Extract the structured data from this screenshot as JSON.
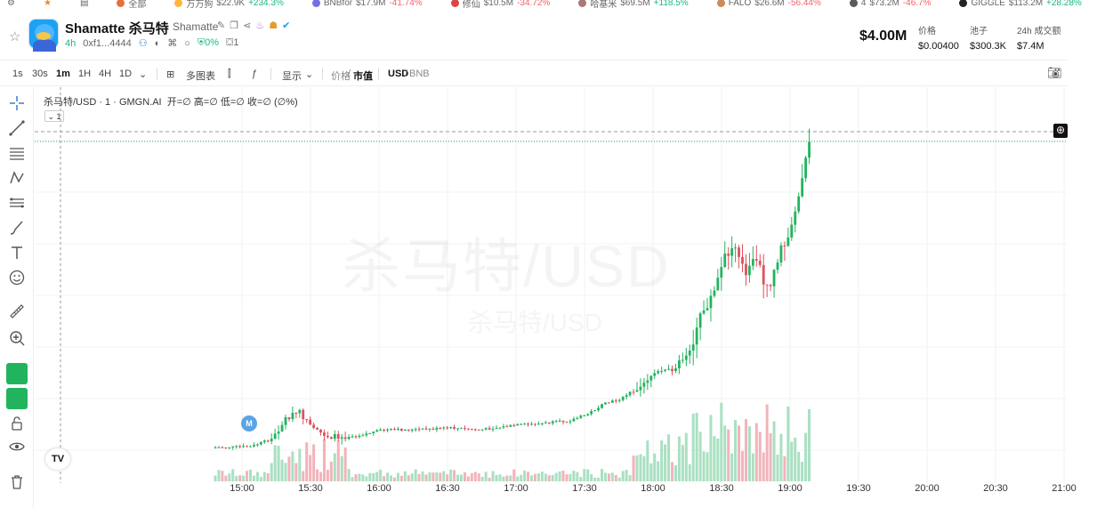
{
  "ticker": [
    {
      "label": "全部",
      "value": "",
      "change": ""
    },
    {
      "label": "万万狗",
      "value": "$22.9K",
      "change": "+234.3%",
      "dir": "up"
    },
    {
      "label": "BNBfor",
      "value": "$17.9M",
      "change": "-41.74%",
      "dir": "down"
    },
    {
      "label": "修仙",
      "value": "$10.5M",
      "change": "-34.72%",
      "dir": "down"
    },
    {
      "label": "哈基米",
      "value": "$69.5M",
      "change": "+118.5%",
      "dir": "up"
    },
    {
      "label": "FALO",
      "value": "$26.6M",
      "change": "-56.44%",
      "dir": "down"
    },
    {
      "label": "4",
      "value": "$73.2M",
      "change": "-46.7%",
      "dir": "down"
    },
    {
      "label": "GIGGLE",
      "value": "$113.2M",
      "change": "+28.28%",
      "dir": "up"
    }
  ],
  "header": {
    "title": "Shamatte 杀马特",
    "subtitle": "Shamatte",
    "age": "4h",
    "address": "0xf1...4444",
    "percent": "0%",
    "count": "1",
    "market_cap": "$4.00M",
    "stats": [
      {
        "label": "价格",
        "value": "$0.00400"
      },
      {
        "label": "池子",
        "value": "$300.3K"
      },
      {
        "label": "24h 成交额",
        "value": "$7.4M"
      }
    ]
  },
  "toolbar": {
    "intervals": [
      "1s",
      "30s",
      "1m",
      "1H",
      "4H",
      "1D"
    ],
    "active_interval": "1m",
    "multi_chart": "多图表",
    "display": "显示",
    "price_label": "价格",
    "mcap_label": "市值",
    "usd_label": "USD",
    "bnb_label": "BNB"
  },
  "chart": {
    "legend_symbol": "杀马特/USD · 1 · GMGN.AI",
    "legend_ohlc": "开=∅ 高=∅ 低=∅ 收=∅ (∅%)",
    "collapse_label": "1",
    "watermark_main": "杀马特/USD",
    "watermark_sub": "杀马特/USD",
    "event_marker": "M",
    "tv_logo": "TV",
    "colors": {
      "up": "#22b35e",
      "down": "#e0505e",
      "vol_up": "#a9e0c1",
      "vol_down": "#f2b3ba"
    }
  },
  "time_axis": [
    "15:00",
    "15:30",
    "16:00",
    "16:30",
    "17:00",
    "17:30",
    "18:00",
    "18:30",
    "19:00",
    "19:30",
    "20:00",
    "20:30",
    "21:00"
  ]
}
